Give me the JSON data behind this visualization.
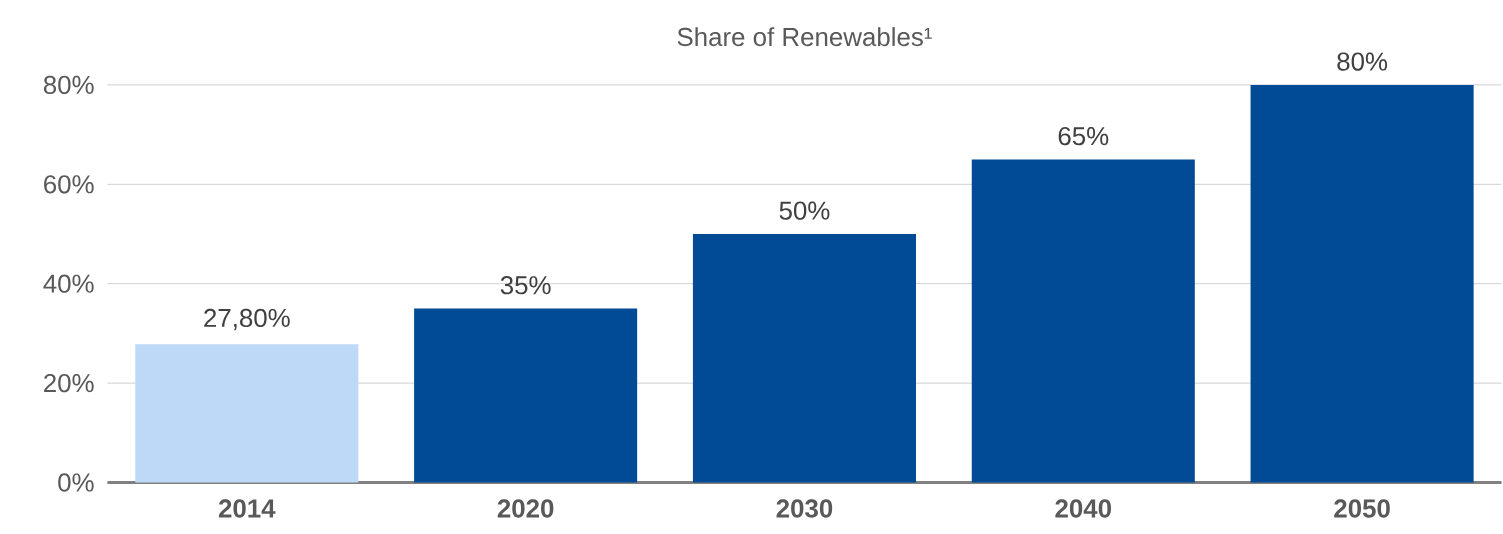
{
  "chart_data": {
    "type": "bar",
    "title": "Share of Renewables¹",
    "categories": [
      "2014",
      "2020",
      "2030",
      "2040",
      "2050"
    ],
    "values": [
      27.8,
      35,
      50,
      65,
      80
    ],
    "colors": [
      "#bdd9f7",
      "#004a96",
      "#004a96",
      "#004a96",
      "#004a96"
    ],
    "value_labels": [
      "27,80%",
      "35%",
      "50%",
      "65%",
      "80%"
    ],
    "ylim": [
      0,
      80
    ],
    "yticks": [
      {
        "value": 0,
        "label": "0%"
      },
      {
        "value": 20,
        "label": "20%"
      },
      {
        "value": 40,
        "label": "40%"
      },
      {
        "value": 60,
        "label": "60%"
      },
      {
        "value": 80,
        "label": "80%"
      }
    ],
    "grid": "y"
  }
}
